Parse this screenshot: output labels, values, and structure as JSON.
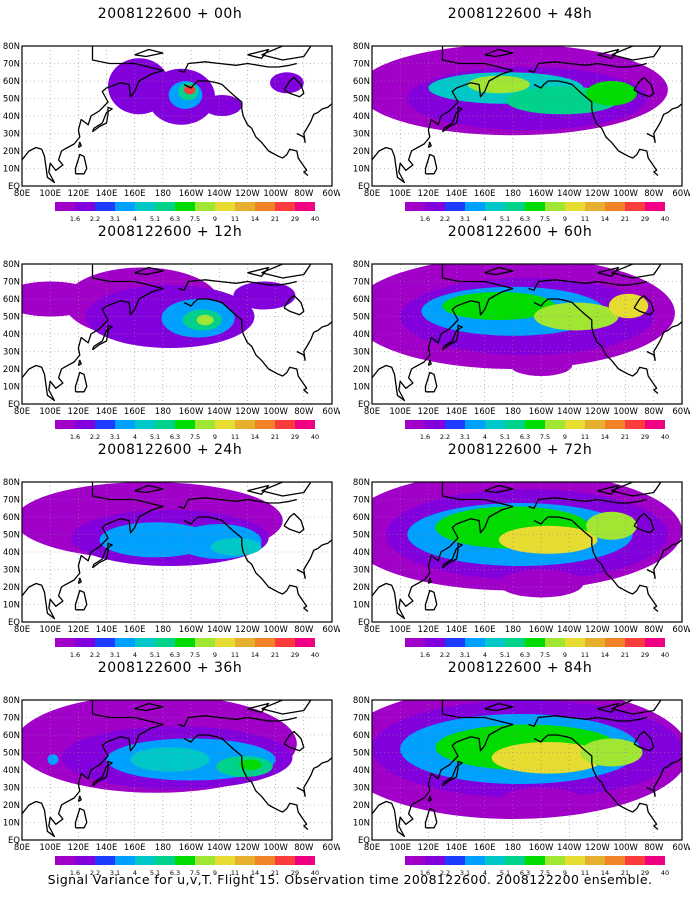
{
  "colorbar": {
    "levels": [
      "1.6",
      "2.2",
      "3.1",
      "4",
      "5.1",
      "6.3",
      "7.5",
      "9",
      "11",
      "14",
      "21",
      "29",
      "40"
    ],
    "colors": [
      "#a000c8",
      "#8200dc",
      "#1e3cff",
      "#00a0ff",
      "#00c8c8",
      "#00d28c",
      "#00dc00",
      "#a0e632",
      "#e6dc32",
      "#e6af2d",
      "#f08228",
      "#fa3c3c",
      "#f00082"
    ]
  },
  "axes": {
    "lat_labels": [
      "EQ",
      "10N",
      "20N",
      "30N",
      "40N",
      "50N",
      "60N",
      "70N",
      "80N"
    ],
    "lon_labels": [
      "80E",
      "100E",
      "120E",
      "140E",
      "160E",
      "180",
      "160W",
      "140W",
      "120W",
      "100W",
      "80W",
      "60W"
    ]
  },
  "chart_data": [
    {
      "type": "heatmap",
      "title": "2008122600 + 00h",
      "forecast_hour": 0,
      "blobs": [
        {
          "lon": 163,
          "lat": 57,
          "rx": 22,
          "ry": 16,
          "level": 1
        },
        {
          "lon": 193,
          "lat": 51,
          "rx": 24,
          "ry": 16,
          "level": 1
        },
        {
          "lon": 196,
          "lat": 52,
          "rx": 12,
          "ry": 8,
          "level": 3
        },
        {
          "lon": 198,
          "lat": 54,
          "rx": 7,
          "ry": 5,
          "level": 5
        },
        {
          "lon": 199,
          "lat": 55,
          "rx": 4,
          "ry": 2.5,
          "level": 11
        },
        {
          "lon": 222,
          "lat": 46,
          "rx": 14,
          "ry": 6,
          "level": 1
        },
        {
          "lon": 268,
          "lat": 59,
          "rx": 12,
          "ry": 6,
          "level": 1
        }
      ]
    },
    {
      "type": "heatmap",
      "title": "2008122600 + 12h",
      "forecast_hour": 12,
      "blobs": [
        {
          "lon": 165,
          "lat": 58,
          "rx": 55,
          "ry": 20,
          "level": 0
        },
        {
          "lon": 100,
          "lat": 60,
          "rx": 35,
          "ry": 10,
          "level": 0
        },
        {
          "lon": 185,
          "lat": 50,
          "rx": 60,
          "ry": 18,
          "level": 1
        },
        {
          "lon": 205,
          "lat": 49,
          "rx": 26,
          "ry": 11,
          "level": 3
        },
        {
          "lon": 208,
          "lat": 48,
          "rx": 14,
          "ry": 6,
          "level": 5
        },
        {
          "lon": 210,
          "lat": 48,
          "rx": 6,
          "ry": 3,
          "level": 7
        },
        {
          "lon": 252,
          "lat": 62,
          "rx": 22,
          "ry": 8,
          "level": 1
        }
      ]
    },
    {
      "type": "heatmap",
      "title": "2008122600 + 24h",
      "forecast_hour": 24,
      "blobs": [
        {
          "lon": 170,
          "lat": 58,
          "rx": 95,
          "ry": 22,
          "level": 0
        },
        {
          "lon": 185,
          "lat": 48,
          "rx": 70,
          "ry": 16,
          "level": 1
        },
        {
          "lon": 175,
          "lat": 47,
          "rx": 40,
          "ry": 10,
          "level": 3
        },
        {
          "lon": 220,
          "lat": 46,
          "rx": 30,
          "ry": 10,
          "level": 3
        },
        {
          "lon": 232,
          "lat": 43,
          "rx": 18,
          "ry": 5,
          "level": 4
        }
      ]
    },
    {
      "type": "heatmap",
      "title": "2008122600 + 36h",
      "forecast_hour": 36,
      "blobs": [
        {
          "lon": 175,
          "lat": 55,
          "rx": 100,
          "ry": 28,
          "level": 0
        },
        {
          "lon": 190,
          "lat": 47,
          "rx": 82,
          "ry": 18,
          "level": 1
        },
        {
          "lon": 200,
          "lat": 46,
          "rx": 60,
          "ry": 12,
          "level": 3
        },
        {
          "lon": 185,
          "lat": 46,
          "rx": 28,
          "ry": 7,
          "level": 4
        },
        {
          "lon": 238,
          "lat": 42,
          "rx": 20,
          "ry": 6,
          "level": 5
        },
        {
          "lon": 242,
          "lat": 43,
          "rx": 8,
          "ry": 3,
          "level": 6
        },
        {
          "lon": 102,
          "lat": 46,
          "rx": 4,
          "ry": 3,
          "level": 3
        }
      ]
    },
    {
      "type": "heatmap",
      "title": "2008122600 + 48h",
      "forecast_hour": 48,
      "blobs": [
        {
          "lon": 180,
          "lat": 55,
          "rx": 110,
          "ry": 26,
          "level": 0
        },
        {
          "lon": 190,
          "lat": 50,
          "rx": 85,
          "ry": 18,
          "level": 1
        },
        {
          "lon": 175,
          "lat": 56,
          "rx": 55,
          "ry": 9,
          "level": 4
        },
        {
          "lon": 215,
          "lat": 49,
          "rx": 40,
          "ry": 8,
          "level": 5
        },
        {
          "lon": 170,
          "lat": 58,
          "rx": 22,
          "ry": 5,
          "level": 7
        },
        {
          "lon": 250,
          "lat": 53,
          "rx": 18,
          "ry": 7,
          "level": 6
        }
      ]
    },
    {
      "type": "heatmap",
      "title": "2008122600 + 60h",
      "forecast_hour": 60,
      "blobs": [
        {
          "lon": 180,
          "lat": 52,
          "rx": 115,
          "ry": 32,
          "level": 0
        },
        {
          "lon": 190,
          "lat": 50,
          "rx": 90,
          "ry": 22,
          "level": 1
        },
        {
          "lon": 180,
          "lat": 53,
          "rx": 65,
          "ry": 14,
          "level": 3
        },
        {
          "lon": 170,
          "lat": 56,
          "rx": 40,
          "ry": 8,
          "level": 6
        },
        {
          "lon": 225,
          "lat": 50,
          "rx": 30,
          "ry": 8,
          "level": 7
        },
        {
          "lon": 262,
          "lat": 56,
          "rx": 14,
          "ry": 7,
          "level": 8
        },
        {
          "lon": 200,
          "lat": 22,
          "rx": 22,
          "ry": 6,
          "level": 0
        }
      ]
    },
    {
      "type": "heatmap",
      "title": "2008122600 + 72h",
      "forecast_hour": 72,
      "blobs": [
        {
          "lon": 180,
          "lat": 52,
          "rx": 120,
          "ry": 34,
          "level": 0
        },
        {
          "lon": 190,
          "lat": 50,
          "rx": 100,
          "ry": 26,
          "level": 1
        },
        {
          "lon": 185,
          "lat": 50,
          "rx": 80,
          "ry": 18,
          "level": 3
        },
        {
          "lon": 180,
          "lat": 54,
          "rx": 55,
          "ry": 12,
          "level": 6
        },
        {
          "lon": 205,
          "lat": 47,
          "rx": 35,
          "ry": 8,
          "level": 8
        },
        {
          "lon": 250,
          "lat": 55,
          "rx": 18,
          "ry": 8,
          "level": 7
        },
        {
          "lon": 200,
          "lat": 22,
          "rx": 30,
          "ry": 8,
          "level": 0
        }
      ]
    },
    {
      "type": "heatmap",
      "title": "2008122600 + 84h",
      "forecast_hour": 84,
      "blobs": [
        {
          "lon": 180,
          "lat": 50,
          "rx": 125,
          "ry": 38,
          "level": 0
        },
        {
          "lon": 190,
          "lat": 52,
          "rx": 110,
          "ry": 28,
          "level": 1
        },
        {
          "lon": 185,
          "lat": 52,
          "rx": 85,
          "ry": 20,
          "level": 3
        },
        {
          "lon": 190,
          "lat": 53,
          "rx": 65,
          "ry": 13,
          "level": 6
        },
        {
          "lon": 205,
          "lat": 47,
          "rx": 40,
          "ry": 9,
          "level": 8
        },
        {
          "lon": 250,
          "lat": 50,
          "rx": 22,
          "ry": 8,
          "level": 7
        },
        {
          "lon": 200,
          "lat": 22,
          "rx": 30,
          "ry": 8,
          "level": 0
        }
      ]
    }
  ],
  "caption": "Signal Variance for u,v,T. Flight 15. Observation time 2008122600. 2008122200 ensemble."
}
